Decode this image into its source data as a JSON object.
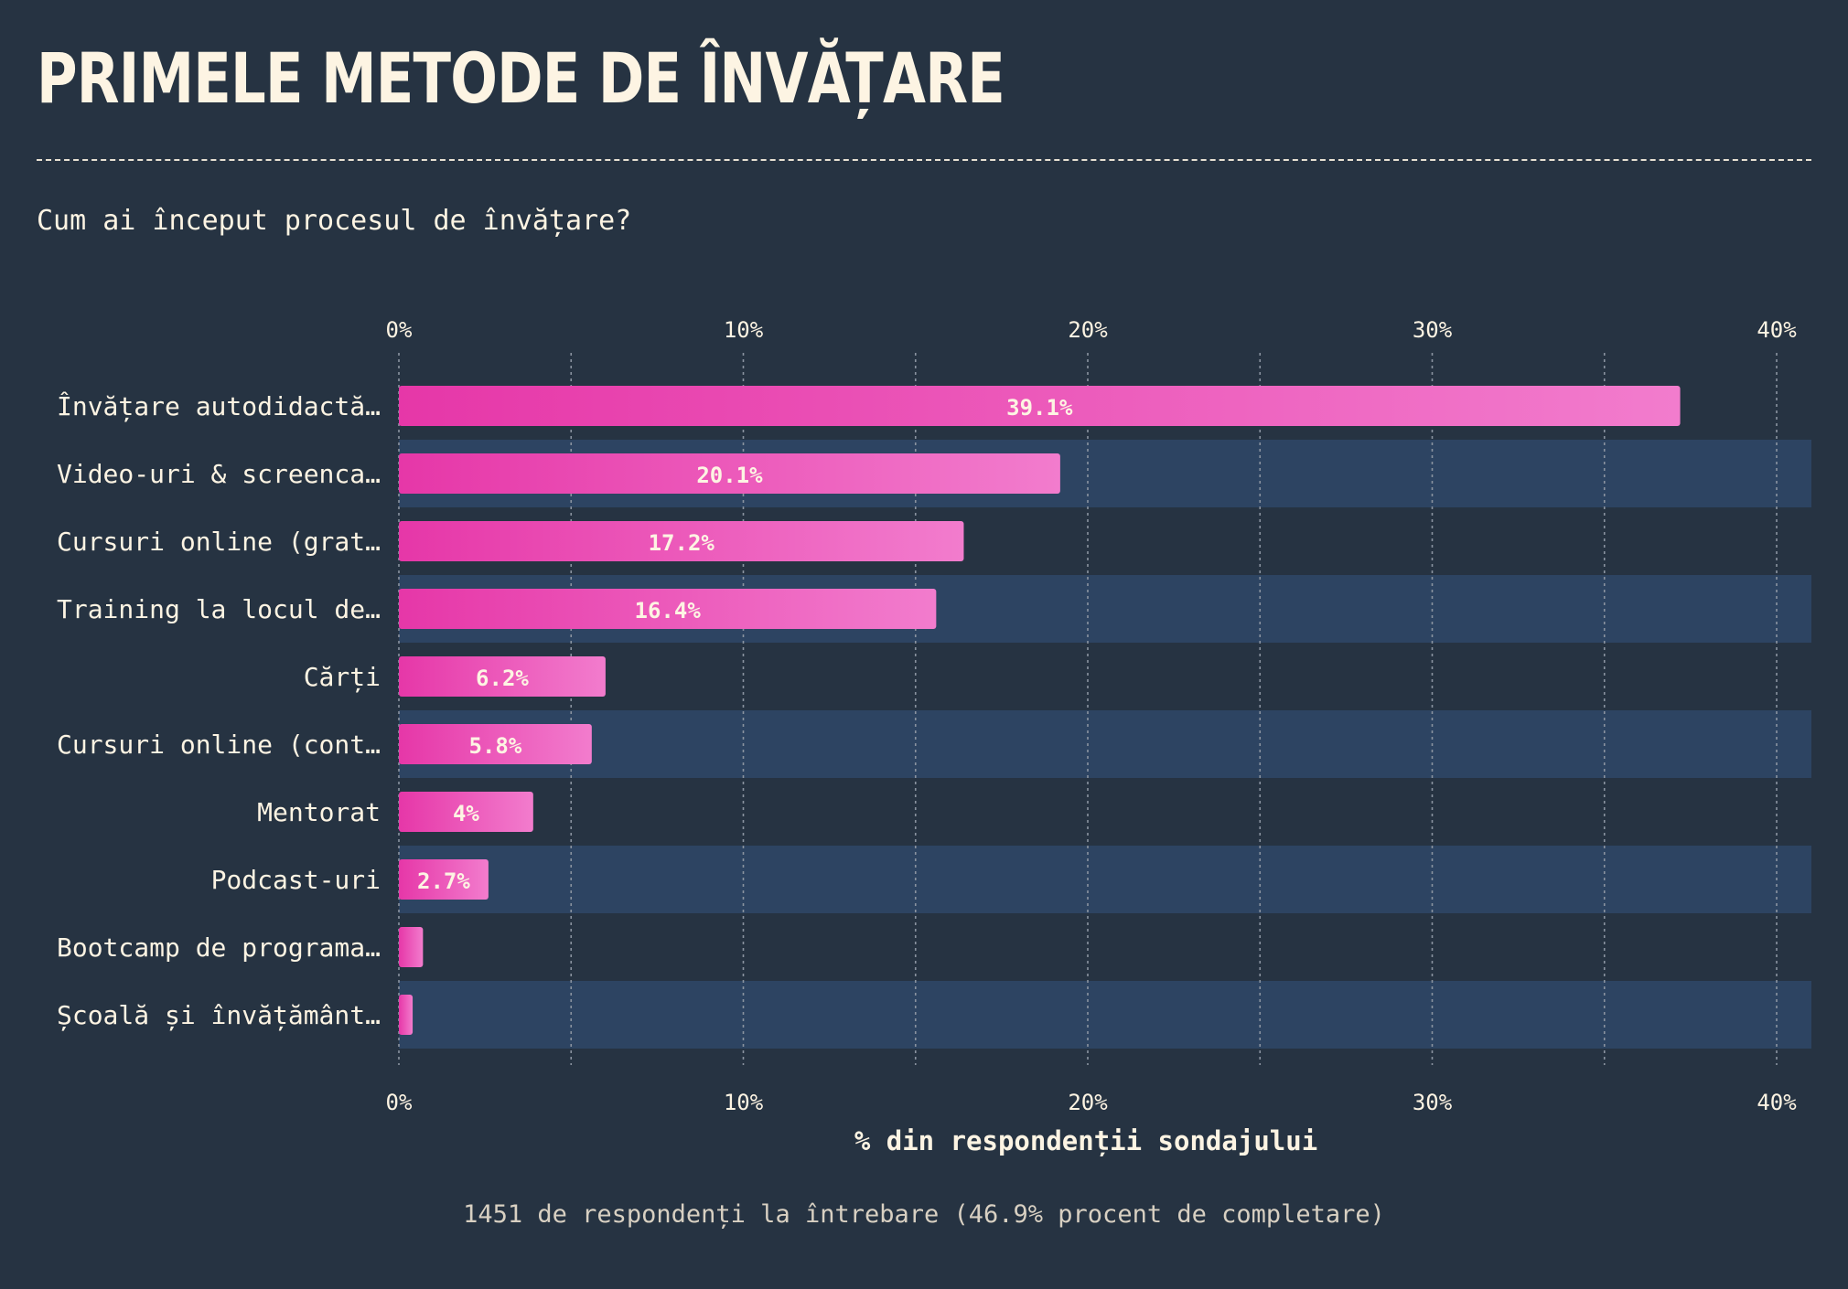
{
  "title": "PRIMELE METODE DE ÎNVĂȚARE",
  "subtitle": "Cum ai început procesul de învățare?",
  "note": "1451 de respondenți la întrebare (46.9% procent de completare)",
  "colors": {
    "background": "#263342",
    "band": "#2d4462",
    "bar_start": "#e637a8",
    "bar_end": "#f27ccd",
    "text": "#fdf4e3",
    "grid": "#8a93a0"
  },
  "chart_data": {
    "type": "bar",
    "orientation": "horizontal",
    "categories": [
      "Învățare autodidactă…",
      "Video-uri & screenca…",
      "Cursuri online (grat…",
      "Training la locul de…",
      "Cărți",
      "Cursuri online (cont…",
      "Mentorat",
      "Podcast-uri",
      "Bootcamp de programa…",
      "Școală și învățământ…"
    ],
    "values": [
      37.2,
      19.2,
      16.4,
      15.6,
      6.0,
      5.6,
      3.9,
      2.6,
      0.7,
      0.4
    ],
    "value_labels": [
      "39.1%",
      "20.1%",
      "17.2%",
      "16.4%",
      "6.2%",
      "5.8%",
      "4%",
      "2.7%",
      "",
      ""
    ],
    "xlabel": "% din respondenții sondajului",
    "xlim": [
      0,
      41
    ],
    "x_ticks": [
      0,
      10,
      20,
      30,
      40
    ],
    "x_tick_labels": [
      "0%",
      "10%",
      "20%",
      "30%",
      "40%"
    ],
    "minor_gridlines": [
      5,
      15,
      25,
      35
    ],
    "grid": true,
    "alternating_row_bands": true
  }
}
